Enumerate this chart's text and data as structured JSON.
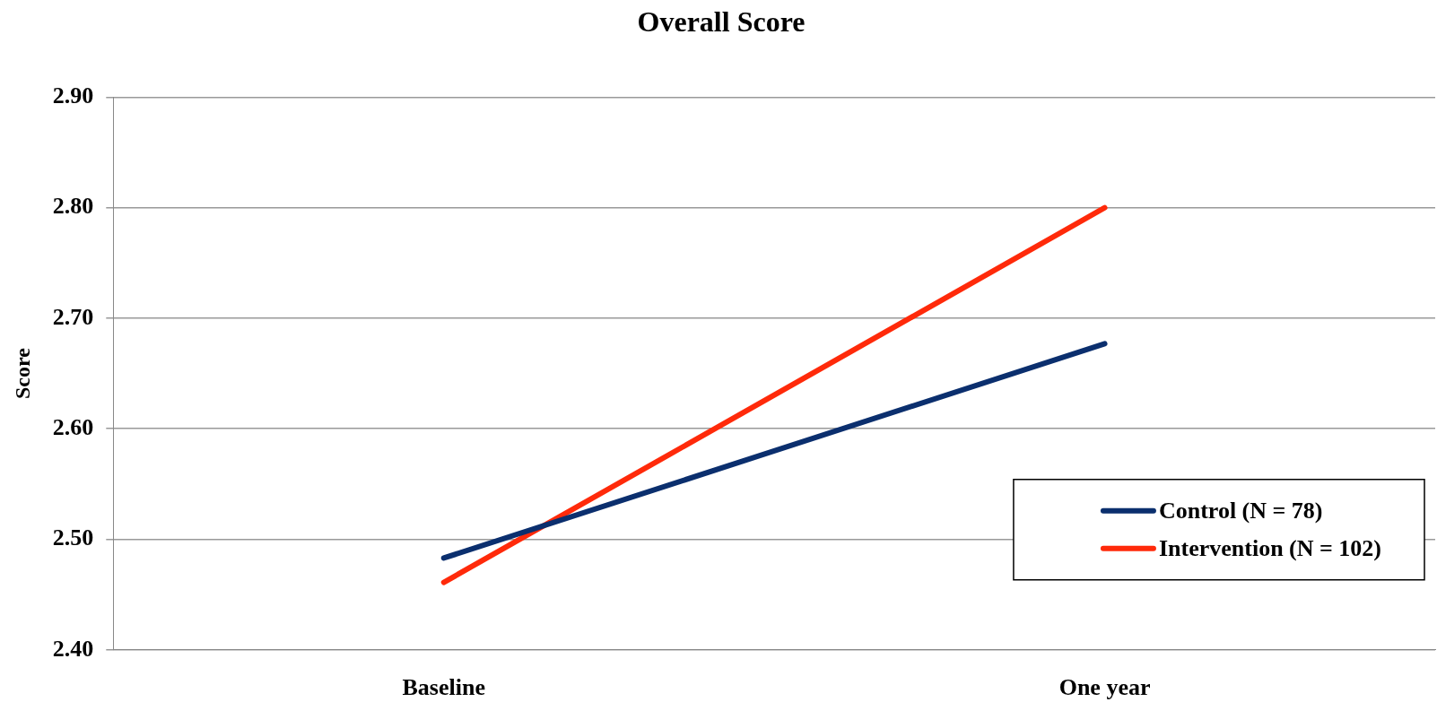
{
  "chart_data": {
    "type": "line",
    "title": "Overall Score",
    "ylabel": "Score",
    "categories": [
      "Baseline",
      "One year"
    ],
    "series": [
      {
        "name": "Control (N = 78)",
        "color": "#0b2f6e",
        "values": [
          2.483,
          2.677
        ]
      },
      {
        "name": "Intervention (N = 102)",
        "color": "#ff2a0a",
        "values": [
          2.461,
          2.8
        ]
      }
    ],
    "ylim": [
      2.4,
      2.9
    ],
    "yticks": [
      {
        "value": 2.4,
        "label": "2.40"
      },
      {
        "value": 2.5,
        "label": "2.50"
      },
      {
        "value": 2.6,
        "label": "2.60"
      },
      {
        "value": 2.7,
        "label": "2.70"
      },
      {
        "value": 2.8,
        "label": "2.80"
      },
      {
        "value": 2.9,
        "label": "2.90"
      }
    ],
    "grid": "y",
    "legend": "bottom right",
    "marker": "none",
    "line_style": "solid"
  }
}
